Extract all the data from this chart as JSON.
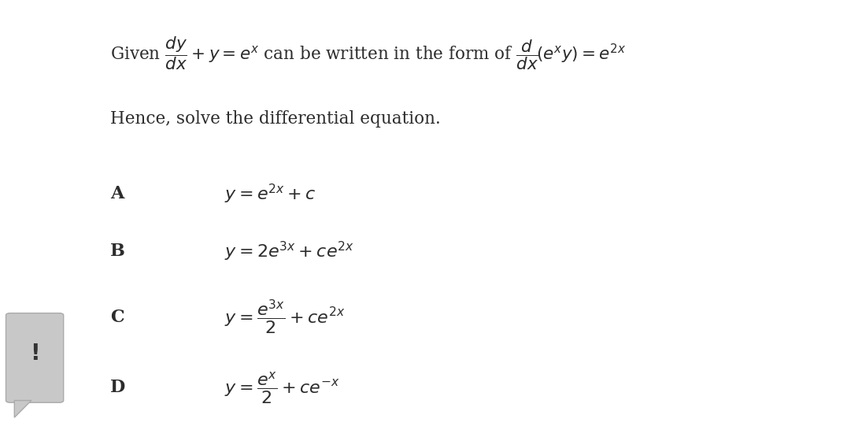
{
  "bg_color": "#e8e8e8",
  "panel_color": "#ffffff",
  "text_color": "#2c2c2c",
  "options": [
    {
      "label": "A",
      "formula": "$y = e^{2x} + c$"
    },
    {
      "label": "B",
      "formula": "$y = 2e^{3x} + ce^{2x}$"
    },
    {
      "label": "C",
      "formula": "$y = \\dfrac{e^{3x}}{2} + ce^{2x}$"
    },
    {
      "label": "D",
      "formula": "$y = \\dfrac{e^{x}}{2} + ce^{-x}$"
    }
  ],
  "icon_bg": "#c8c8c8",
  "figsize": [
    10.76,
    5.41
  ],
  "dpi": 100
}
